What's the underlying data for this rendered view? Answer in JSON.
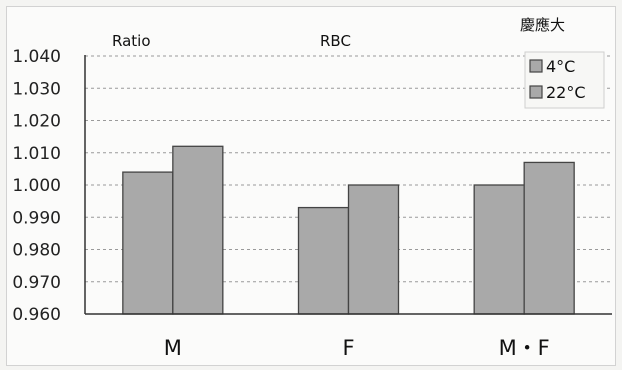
{
  "header": {
    "ratio_label": "Ratio",
    "rbc_label": "RBC",
    "org_label": "慶應大"
  },
  "chart_data": {
    "type": "bar",
    "categories": [
      "M",
      "F",
      "M・F"
    ],
    "series": [
      {
        "name": "4°C",
        "values": [
          1.004,
          0.993,
          1.0
        ]
      },
      {
        "name": "22°C",
        "values": [
          1.012,
          1.0,
          1.007
        ]
      }
    ],
    "ylim": [
      0.96,
      1.04
    ],
    "yticks": [
      "0.960",
      "0.970",
      "0.980",
      "0.990",
      "1.000",
      "1.010",
      "1.020",
      "1.030",
      "1.040"
    ],
    "ytick_values": [
      0.96,
      0.97,
      0.98,
      0.99,
      1.0,
      1.01,
      1.02,
      1.03,
      1.04
    ],
    "grid": true,
    "legend_position": "top-right",
    "bar_color": "#a9a9a9"
  }
}
